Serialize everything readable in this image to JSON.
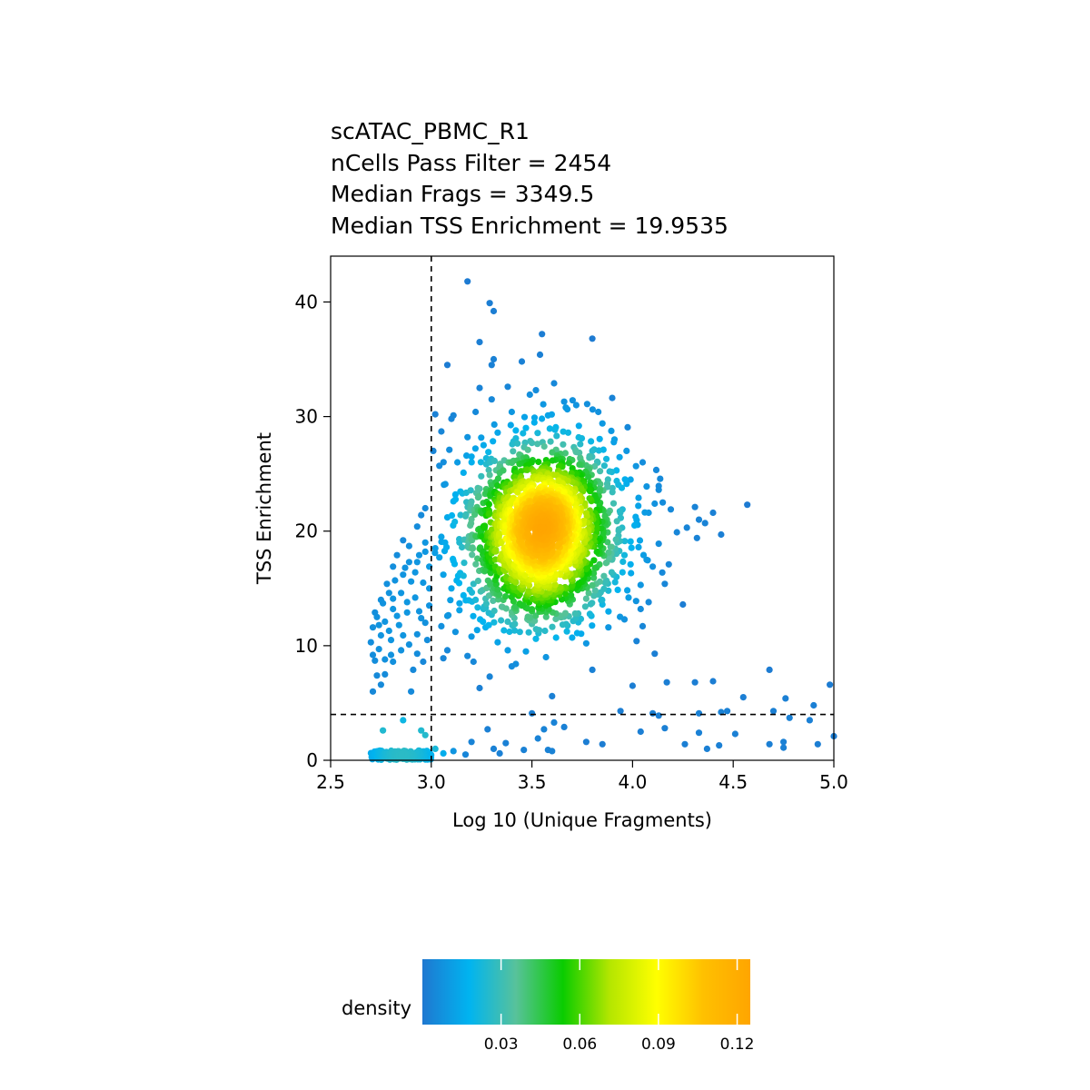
{
  "title_lines": [
    "scATAC_PBMC_R1",
    "nCells Pass Filter = 2454",
    "Median Frags = 3349.5",
    "Median TSS Enrichment = 19.9535"
  ],
  "chart_data": {
    "type": "scatter",
    "xlabel": "Log 10 (Unique Fragments)",
    "ylabel": "TSS Enrichment",
    "xlim": [
      2.5,
      5.0
    ],
    "ylim": [
      0,
      44
    ],
    "x_ticks": [
      "2.5",
      "3.0",
      "3.5",
      "4.0",
      "4.5",
      "5.0"
    ],
    "y_ticks": [
      "0",
      "10",
      "20",
      "30",
      "40"
    ],
    "grid": false,
    "thresholds": {
      "x": 3.0,
      "y": 4
    },
    "color_by": "density",
    "legend": {
      "title": "density",
      "ticks": [
        "0.03",
        "0.06",
        "0.09",
        "0.12"
      ],
      "tick_values": [
        0.03,
        0.06,
        0.09,
        0.12
      ],
      "range": [
        0,
        0.125
      ],
      "placement": "bottom",
      "colors": [
        "#1f78d0",
        "#00b4f0",
        "#58c29a",
        "#0acc00",
        "#b4e600",
        "#ffff00",
        "#ffc000",
        "#ffa500"
      ]
    },
    "points": [
      [
        3.18,
        41.8
      ],
      [
        3.29,
        39.9
      ],
      [
        3.31,
        39.2
      ],
      [
        3.55,
        37.2
      ],
      [
        3.8,
        36.8
      ],
      [
        3.24,
        36.5
      ],
      [
        3.54,
        35.4
      ],
      [
        3.31,
        35.0
      ],
      [
        3.3,
        34.5
      ],
      [
        3.08,
        34.5
      ],
      [
        3.45,
        34.8
      ],
      [
        3.61,
        32.9
      ],
      [
        3.24,
        32.5
      ],
      [
        3.38,
        32.6
      ],
      [
        3.52,
        32.3
      ],
      [
        3.66,
        31.3
      ],
      [
        3.72,
        31.0
      ],
      [
        3.83,
        30.4
      ],
      [
        3.02,
        30.2
      ],
      [
        3.11,
        30.1
      ],
      [
        3.85,
        29.4
      ],
      [
        3.91,
        28.0
      ],
      [
        3.97,
        27.0
      ],
      [
        4.05,
        26.0
      ],
      [
        4.13,
        23.6
      ],
      [
        4.11,
        22.4
      ],
      [
        4.15,
        22.5
      ],
      [
        4.19,
        21.9
      ],
      [
        4.31,
        22.1
      ],
      [
        4.57,
        22.3
      ],
      [
        4.33,
        21.0
      ],
      [
        4.4,
        21.6
      ],
      [
        4.36,
        20.7
      ],
      [
        4.27,
        20.3
      ],
      [
        4.44,
        19.7
      ],
      [
        4.32,
        19.4
      ],
      [
        4.22,
        19.9
      ],
      [
        4.13,
        18.9
      ],
      [
        4.18,
        17.1
      ],
      [
        4.16,
        15.4
      ],
      [
        4.08,
        13.8
      ],
      [
        4.25,
        13.6
      ],
      [
        4.04,
        13.2
      ],
      [
        3.96,
        12.3
      ],
      [
        4.05,
        11.7
      ],
      [
        3.88,
        11.6
      ],
      [
        4.02,
        10.4
      ],
      [
        3.77,
        10.2
      ],
      [
        3.7,
        10.7
      ],
      [
        4.11,
        9.3
      ],
      [
        3.8,
        7.9
      ],
      [
        4.17,
        6.8
      ],
      [
        4.0,
        6.5
      ],
      [
        3.6,
        5.6
      ],
      [
        3.5,
        4.1
      ],
      [
        3.94,
        4.3
      ],
      [
        4.1,
        4.1
      ],
      [
        4.31,
        6.8
      ],
      [
        4.4,
        6.9
      ],
      [
        4.55,
        5.5
      ],
      [
        4.68,
        7.9
      ],
      [
        4.76,
        5.4
      ],
      [
        4.98,
        6.6
      ],
      [
        4.9,
        4.8
      ],
      [
        4.7,
        4.3
      ],
      [
        4.78,
        3.7
      ],
      [
        4.88,
        3.5
      ],
      [
        4.47,
        4.3
      ],
      [
        4.44,
        4.2
      ],
      [
        4.33,
        4.1
      ],
      [
        4.13,
        3.9
      ],
      [
        4.16,
        2.8
      ],
      [
        4.04,
        2.5
      ],
      [
        4.26,
        1.4
      ],
      [
        4.33,
        2.4
      ],
      [
        4.43,
        1.3
      ],
      [
        4.51,
        2.3
      ],
      [
        4.37,
        1.0
      ],
      [
        4.68,
        1.4
      ],
      [
        4.75,
        1.1
      ],
      [
        4.75,
        1.6
      ],
      [
        4.92,
        1.4
      ],
      [
        5.0,
        2.1
      ],
      [
        3.85,
        1.4
      ],
      [
        3.77,
        1.6
      ],
      [
        3.66,
        2.9
      ],
      [
        3.61,
        3.3
      ],
      [
        3.53,
        1.9
      ],
      [
        3.56,
        2.7
      ],
      [
        3.58,
        0.9
      ],
      [
        3.6,
        0.8
      ],
      [
        3.46,
        0.9
      ],
      [
        3.37,
        1.5
      ],
      [
        3.34,
        0.6
      ],
      [
        3.31,
        1.0
      ],
      [
        3.28,
        2.7
      ],
      [
        3.2,
        1.6
      ],
      [
        3.17,
        0.5
      ],
      [
        3.11,
        0.8
      ],
      [
        3.06,
        0.6
      ],
      [
        3.02,
        1.0
      ],
      [
        2.97,
        2.2
      ],
      [
        2.95,
        2.6
      ],
      [
        2.86,
        3.5
      ],
      [
        2.76,
        2.6
      ],
      [
        2.71,
        6.0
      ],
      [
        2.75,
        6.6
      ],
      [
        2.73,
        7.4
      ],
      [
        2.9,
        6.0
      ],
      [
        3.06,
        8.9
      ],
      [
        3.08,
        9.6
      ],
      [
        3.18,
        9.1
      ],
      [
        3.2,
        10.8
      ],
      [
        3.24,
        6.3
      ],
      [
        3.21,
        8.6
      ],
      [
        3.38,
        9.6
      ],
      [
        3.42,
        8.4
      ],
      [
        3.47,
        9.5
      ],
      [
        3.52,
        10.6
      ],
      [
        3.57,
        9.0
      ],
      [
        3.62,
        10.7
      ],
      [
        3.64,
        12.5
      ],
      [
        3.73,
        12.8
      ],
      [
        3.62,
        12.8
      ],
      [
        3.77,
        14.1
      ],
      [
        3.82,
        15.4
      ],
      [
        3.88,
        14.8
      ],
      [
        3.92,
        16.0
      ],
      [
        3.95,
        16.4
      ],
      [
        3.99,
        17.1
      ],
      [
        4.03,
        18.6
      ],
      [
        4.07,
        17.5
      ],
      [
        4.1,
        16.9
      ],
      [
        4.04,
        15.3
      ],
      [
        3.98,
        14.2
      ],
      [
        3.85,
        13.6
      ],
      [
        3.45,
        13.5
      ],
      [
        3.38,
        12.1
      ],
      [
        3.3,
        12.7
      ],
      [
        3.26,
        13.2
      ],
      [
        3.22,
        14.0
      ],
      [
        3.16,
        14.4
      ],
      [
        3.1,
        15.0
      ],
      [
        3.06,
        16.2
      ],
      [
        3.04,
        17.7
      ],
      [
        3.02,
        18.5
      ],
      [
        3.05,
        19.5
      ],
      [
        3.08,
        21.2
      ],
      [
        3.11,
        22.6
      ],
      [
        3.07,
        24.1
      ],
      [
        3.04,
        25.7
      ],
      [
        3.01,
        27.0
      ],
      [
        3.05,
        28.7
      ],
      [
        3.1,
        29.8
      ],
      [
        3.18,
        28.2
      ],
      [
        3.22,
        30.4
      ],
      [
        3.3,
        31.5
      ],
      [
        3.4,
        30.4
      ],
      [
        3.47,
        29.0
      ],
      [
        3.58,
        30.1
      ],
      [
        3.68,
        28.6
      ],
      [
        3.74,
        27.6
      ],
      [
        3.8,
        27.0
      ],
      [
        3.87,
        26.3
      ],
      [
        3.92,
        25.3
      ],
      [
        3.99,
        24.5
      ],
      [
        4.03,
        22.9
      ],
      [
        4.08,
        21.6
      ],
      [
        4.01,
        20.5
      ],
      [
        3.93,
        19.6
      ],
      [
        3.09,
        27.1
      ],
      [
        3.13,
        26.0
      ],
      [
        3.16,
        25.1
      ],
      [
        3.2,
        26.5
      ],
      [
        3.26,
        27.5
      ],
      [
        3.12,
        23.2
      ],
      [
        3.17,
        21.3
      ],
      [
        3.14,
        19.0
      ],
      [
        3.11,
        17.4
      ],
      [
        3.16,
        16.1
      ],
      [
        3.21,
        15.4
      ],
      [
        3.27,
        16.6
      ],
      [
        3.2,
        18.5
      ],
      [
        3.24,
        20.2
      ],
      [
        3.24,
        23.7
      ],
      [
        3.29,
        24.9
      ],
      [
        3.33,
        28.6
      ],
      [
        3.42,
        28.1
      ],
      [
        3.5,
        27.7
      ],
      [
        3.62,
        27.1
      ],
      [
        3.7,
        26.2
      ],
      [
        3.78,
        25.4
      ],
      [
        3.84,
        24.1
      ],
      [
        3.9,
        23.4
      ],
      [
        3.95,
        21.9
      ],
      [
        3.99,
        19.1
      ],
      [
        3.96,
        17.9
      ],
      [
        3.9,
        17.6
      ],
      [
        3.82,
        16.8
      ],
      [
        3.72,
        16.2
      ],
      [
        3.64,
        15.1
      ],
      [
        3.53,
        14.8
      ],
      [
        3.42,
        14.5
      ],
      [
        3.33,
        14.9
      ],
      [
        3.27,
        14.1
      ],
      [
        3.35,
        13.4
      ],
      [
        3.5,
        13.0
      ],
      [
        3.58,
        13.7
      ],
      [
        3.68,
        13.9
      ],
      [
        3.75,
        15.0
      ],
      [
        3.14,
        13.1
      ],
      [
        3.08,
        12.6
      ],
      [
        3.05,
        11.7
      ],
      [
        3.12,
        11.2
      ],
      [
        3.27,
        11.6
      ],
      [
        3.33,
        10.3
      ],
      [
        3.44,
        11.2
      ],
      [
        3.5,
        11.9
      ],
      [
        3.4,
        8.2
      ],
      [
        3.29,
        7.3
      ],
      [
        2.97,
        22.0
      ],
      [
        2.95,
        21.4
      ],
      [
        2.93,
        20.4
      ],
      [
        2.97,
        19.0
      ],
      [
        2.94,
        17.9
      ],
      [
        2.89,
        17.3
      ],
      [
        2.86,
        16.2
      ],
      [
        2.82,
        15.7
      ],
      [
        2.79,
        14.6
      ],
      [
        2.76,
        13.7
      ],
      [
        2.73,
        12.5
      ],
      [
        2.71,
        11.6
      ],
      [
        2.7,
        10.3
      ],
      [
        2.74,
        9.7
      ],
      [
        2.77,
        8.8
      ],
      [
        2.8,
        10.5
      ],
      [
        2.84,
        11.8
      ],
      [
        2.88,
        12.9
      ],
      [
        2.92,
        14.2
      ],
      [
        2.96,
        15.5
      ],
      [
        2.99,
        16.9
      ],
      [
        2.92,
        16.4
      ],
      [
        2.89,
        18.7
      ],
      [
        2.86,
        19.2
      ],
      [
        2.83,
        17.9
      ],
      [
        2.81,
        16.9
      ],
      [
        2.78,
        15.4
      ],
      [
        2.75,
        14.0
      ],
      [
        2.72,
        12.9
      ],
      [
        2.77,
        12.1
      ],
      [
        2.81,
        13.2
      ],
      [
        2.85,
        14.6
      ],
      [
        2.9,
        15.6
      ],
      [
        2.94,
        13.0
      ],
      [
        2.97,
        12.0
      ],
      [
        2.93,
        11.0
      ],
      [
        2.89,
        10.1
      ],
      [
        2.85,
        9.6
      ],
      [
        2.81,
        8.6
      ],
      [
        2.77,
        7.5
      ],
      [
        2.72,
        8.7
      ],
      [
        2.75,
        10.9
      ],
      [
        2.79,
        11.3
      ],
      [
        2.83,
        12.6
      ],
      [
        2.88,
        13.8
      ],
      [
        2.93,
        9.3
      ],
      [
        2.96,
        8.6
      ],
      [
        2.91,
        7.9
      ],
      [
        2.98,
        10.5
      ],
      [
        2.99,
        13.5
      ],
      [
        2.86,
        10.9
      ],
      [
        2.8,
        9.2
      ],
      [
        2.71,
        9.2
      ],
      [
        2.74,
        11.8
      ],
      [
        2.97,
        18.2
      ],
      [
        2.93,
        17.3
      ],
      [
        2.99,
        15.0
      ],
      [
        2.95,
        12.4
      ],
      [
        2.87,
        16.8
      ],
      [
        2.81,
        14.1
      ]
    ],
    "cluster_lowx": {
      "x_range": [
        2.7,
        3.0
      ],
      "y_range": [
        0.05,
        0.85
      ],
      "n": 180
    },
    "cluster_main": {
      "center": [
        3.55,
        20.0
      ],
      "sd": [
        0.18,
        3.8
      ],
      "n": 1900
    }
  }
}
